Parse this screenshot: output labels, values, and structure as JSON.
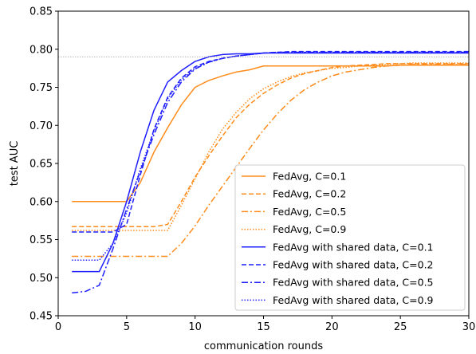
{
  "chart_data": {
    "type": "line",
    "xlabel": "communication rounds",
    "ylabel": "test AUC",
    "xlim": [
      0,
      30
    ],
    "ylim": [
      0.45,
      0.85
    ],
    "xticks": [
      0,
      5,
      10,
      15,
      20,
      25,
      30
    ],
    "xtick_labels": [
      "0",
      "5",
      "10",
      "15",
      "20",
      "25",
      "30"
    ],
    "yticks": [
      0.45,
      0.5,
      0.55,
      0.6,
      0.65,
      0.7,
      0.75,
      0.8,
      0.85
    ],
    "ytick_labels": [
      "0.45",
      "0.50",
      "0.55",
      "0.60",
      "0.65",
      "0.70",
      "0.75",
      "0.80",
      "0.85"
    ],
    "grid": false,
    "legend_position": "lower-right",
    "reference_line": {
      "y": 0.79,
      "style": "dotted",
      "color": "#aaaaaa"
    },
    "x": [
      1,
      2,
      3,
      4,
      5,
      6,
      7,
      8,
      9,
      10,
      11,
      12,
      13,
      14,
      15,
      16,
      17,
      18,
      19,
      20,
      21,
      22,
      23,
      24,
      25,
      26,
      27,
      28,
      29,
      30
    ],
    "series": [
      {
        "name": "FedAvg, C=0.1",
        "color": "#ff8c1a",
        "dash": "solid",
        "values": [
          0.6,
          0.6,
          0.6,
          0.6,
          0.6,
          0.625,
          0.665,
          0.697,
          0.727,
          0.75,
          0.759,
          0.765,
          0.77,
          0.773,
          0.778,
          0.778,
          0.778,
          0.778,
          0.778,
          0.778,
          0.778,
          0.778,
          0.778,
          0.778,
          0.779,
          0.779,
          0.779,
          0.779,
          0.779,
          0.779
        ]
      },
      {
        "name": "FedAvg, C=0.2",
        "color": "#ff8c1a",
        "dash": "dashed",
        "values": [
          0.567,
          0.567,
          0.567,
          0.567,
          0.567,
          0.567,
          0.567,
          0.57,
          0.6,
          0.632,
          0.66,
          0.686,
          0.71,
          0.728,
          0.742,
          0.753,
          0.762,
          0.768,
          0.772,
          0.776,
          0.778,
          0.779,
          0.78,
          0.781,
          0.781,
          0.781,
          0.781,
          0.781,
          0.781,
          0.781
        ]
      },
      {
        "name": "FedAvg, C=0.5",
        "color": "#ff8c1a",
        "dash": "dashdot",
        "values": [
          0.528,
          0.528,
          0.528,
          0.528,
          0.528,
          0.528,
          0.528,
          0.528,
          0.545,
          0.568,
          0.595,
          0.62,
          0.645,
          0.67,
          0.694,
          0.715,
          0.733,
          0.747,
          0.757,
          0.765,
          0.77,
          0.773,
          0.776,
          0.778,
          0.779,
          0.78,
          0.78,
          0.78,
          0.78,
          0.78
        ]
      },
      {
        "name": "FedAvg, C=0.9",
        "color": "#ff8c1a",
        "dash": "dotted",
        "values": [
          0.562,
          0.562,
          0.562,
          0.562,
          0.562,
          0.562,
          0.562,
          0.562,
          0.595,
          0.63,
          0.665,
          0.695,
          0.717,
          0.735,
          0.748,
          0.757,
          0.764,
          0.769,
          0.772,
          0.775,
          0.776,
          0.778,
          0.779,
          0.78,
          0.781,
          0.782,
          0.782,
          0.782,
          0.782,
          0.782
        ]
      },
      {
        "name": "FedAvg with shared data, C=0.1",
        "color": "#1f1fff",
        "dash": "solid",
        "values": [
          0.508,
          0.508,
          0.508,
          0.545,
          0.6,
          0.665,
          0.72,
          0.757,
          0.772,
          0.784,
          0.79,
          0.793,
          0.794,
          0.794,
          0.795,
          0.795,
          0.795,
          0.795,
          0.795,
          0.795,
          0.795,
          0.795,
          0.795,
          0.795,
          0.795,
          0.795,
          0.795,
          0.795,
          0.795,
          0.795
        ]
      },
      {
        "name": "FedAvg with shared data, C=0.2",
        "color": "#1f1fff",
        "dash": "dashed",
        "values": [
          0.56,
          0.56,
          0.56,
          0.56,
          0.57,
          0.635,
          0.695,
          0.737,
          0.762,
          0.777,
          0.784,
          0.788,
          0.791,
          0.793,
          0.795,
          0.796,
          0.797,
          0.797,
          0.797,
          0.797,
          0.797,
          0.797,
          0.797,
          0.797,
          0.797,
          0.797,
          0.797,
          0.797,
          0.797,
          0.797
        ]
      },
      {
        "name": "FedAvg with shared data, C=0.5",
        "color": "#1f1fff",
        "dash": "dashdot",
        "values": [
          0.48,
          0.482,
          0.49,
          0.538,
          0.59,
          0.64,
          0.688,
          0.73,
          0.757,
          0.774,
          0.783,
          0.788,
          0.791,
          0.793,
          0.795,
          0.796,
          0.796,
          0.796,
          0.796,
          0.796,
          0.796,
          0.796,
          0.796,
          0.796,
          0.796,
          0.796,
          0.796,
          0.796,
          0.796,
          0.796
        ]
      },
      {
        "name": "FedAvg with shared data, C=0.9",
        "color": "#1f1fff",
        "dash": "dotted",
        "values": [
          0.523,
          0.523,
          0.523,
          0.545,
          0.585,
          0.643,
          0.693,
          0.735,
          0.76,
          0.775,
          0.783,
          0.788,
          0.791,
          0.793,
          0.795,
          0.796,
          0.796,
          0.796,
          0.796,
          0.796,
          0.796,
          0.796,
          0.796,
          0.796,
          0.796,
          0.796,
          0.796,
          0.796,
          0.796,
          0.796
        ]
      }
    ]
  }
}
